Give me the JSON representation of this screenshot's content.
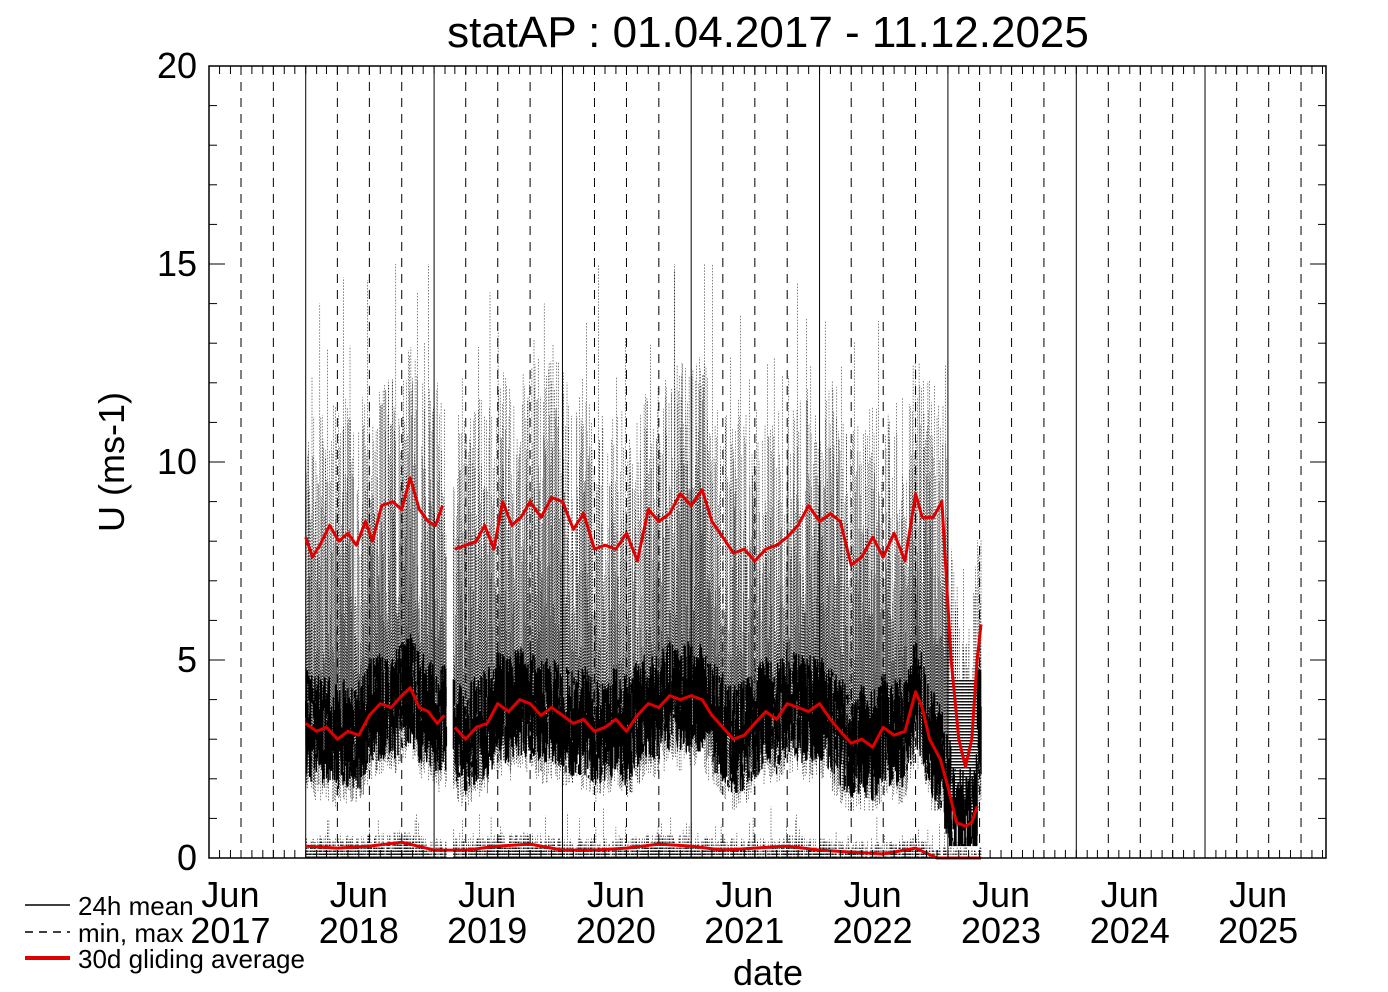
{
  "chart_data": {
    "type": "line",
    "title": "statAP : 01.04.2017 - 11.12.2025",
    "xlabel": "date",
    "ylabel": "U (ms-1)",
    "ylim": [
      0,
      20
    ],
    "yticks": [
      "0",
      "5",
      "10",
      "15",
      "20"
    ],
    "xlim": [
      "2017-04-01",
      "2025-12-11"
    ],
    "xtick_month": "Jun",
    "xtick_years": [
      "2017",
      "2018",
      "2019",
      "2020",
      "2021",
      "2022",
      "2023",
      "2024",
      "2025"
    ],
    "grid": "vertical lines at year starts (solid) and quarters (dashed)",
    "legend_position": "bottom-left",
    "legend": [
      {
        "label": "24h mean",
        "style": "solid",
        "color": "#000000"
      },
      {
        "label": "min, max",
        "style": "dashed",
        "color": "#000000"
      },
      {
        "label": "30d gliding average",
        "style": "solid-thick",
        "color": "#e00000"
      }
    ],
    "series": [
      {
        "name": "30d gliding average (max)",
        "color": "#e00000",
        "points": [
          [
            "2018-01-01",
            8.1
          ],
          [
            "2018-01-20",
            7.6
          ],
          [
            "2018-02-10",
            7.9
          ],
          [
            "2018-03-10",
            8.4
          ],
          [
            "2018-04-05",
            8.0
          ],
          [
            "2018-05-01",
            8.2
          ],
          [
            "2018-05-25",
            7.9
          ],
          [
            "2018-06-20",
            8.5
          ],
          [
            "2018-07-10",
            8.0
          ],
          [
            "2018-08-05",
            8.9
          ],
          [
            "2018-09-05",
            9.0
          ],
          [
            "2018-10-01",
            8.8
          ],
          [
            "2018-10-25",
            9.6
          ],
          [
            "2018-11-20",
            8.8
          ],
          [
            "2018-12-15",
            8.5
          ],
          [
            "2019-01-05",
            8.4
          ],
          [
            "2019-01-25",
            8.9
          ],
          [
            "2019-02-10",
            null
          ],
          [
            "2019-03-01",
            7.8
          ],
          [
            "2019-04-01",
            7.9
          ],
          [
            "2019-05-01",
            8.0
          ],
          [
            "2019-05-25",
            8.4
          ],
          [
            "2019-06-20",
            7.8
          ],
          [
            "2019-07-15",
            9.0
          ],
          [
            "2019-08-10",
            8.4
          ],
          [
            "2019-09-05",
            8.6
          ],
          [
            "2019-10-01",
            9.0
          ],
          [
            "2019-11-01",
            8.6
          ],
          [
            "2019-12-01",
            9.1
          ],
          [
            "2020-01-01",
            9.0
          ],
          [
            "2020-02-01",
            8.3
          ],
          [
            "2020-03-01",
            8.7
          ],
          [
            "2020-04-01",
            7.8
          ],
          [
            "2020-05-01",
            7.9
          ],
          [
            "2020-06-01",
            7.8
          ],
          [
            "2020-07-01",
            8.2
          ],
          [
            "2020-08-01",
            7.5
          ],
          [
            "2020-09-01",
            8.8
          ],
          [
            "2020-10-01",
            8.5
          ],
          [
            "2020-11-01",
            8.7
          ],
          [
            "2020-12-01",
            9.2
          ],
          [
            "2021-01-01",
            8.9
          ],
          [
            "2021-02-01",
            9.3
          ],
          [
            "2021-03-01",
            8.5
          ],
          [
            "2021-04-01",
            8.1
          ],
          [
            "2021-05-01",
            7.7
          ],
          [
            "2021-06-01",
            7.8
          ],
          [
            "2021-07-01",
            7.5
          ],
          [
            "2021-08-01",
            7.8
          ],
          [
            "2021-09-01",
            7.9
          ],
          [
            "2021-10-01",
            8.1
          ],
          [
            "2021-11-01",
            8.4
          ],
          [
            "2021-12-01",
            8.9
          ],
          [
            "2022-01-01",
            8.5
          ],
          [
            "2022-02-01",
            8.7
          ],
          [
            "2022-03-01",
            8.5
          ],
          [
            "2022-04-01",
            7.4
          ],
          [
            "2022-05-01",
            7.6
          ],
          [
            "2022-06-01",
            8.1
          ],
          [
            "2022-07-01",
            7.6
          ],
          [
            "2022-08-01",
            8.2
          ],
          [
            "2022-09-01",
            7.5
          ],
          [
            "2022-10-01",
            9.2
          ],
          [
            "2022-10-20",
            8.6
          ],
          [
            "2022-11-20",
            8.6
          ],
          [
            "2022-12-15",
            9.0
          ],
          [
            "2023-01-10",
            5.0
          ],
          [
            "2023-02-01",
            3.0
          ],
          [
            "2023-02-20",
            2.3
          ],
          [
            "2023-03-10",
            3.0
          ],
          [
            "2023-03-25",
            5.0
          ],
          [
            "2023-04-05",
            5.9
          ]
        ]
      },
      {
        "name": "30d gliding average (mean)",
        "color": "#e00000",
        "points": [
          [
            "2018-01-01",
            3.4
          ],
          [
            "2018-02-01",
            3.2
          ],
          [
            "2018-03-01",
            3.3
          ],
          [
            "2018-04-01",
            3.0
          ],
          [
            "2018-05-01",
            3.2
          ],
          [
            "2018-06-01",
            3.1
          ],
          [
            "2018-07-01",
            3.6
          ],
          [
            "2018-08-01",
            3.9
          ],
          [
            "2018-09-01",
            3.8
          ],
          [
            "2018-10-01",
            4.1
          ],
          [
            "2018-10-25",
            4.3
          ],
          [
            "2018-11-20",
            3.8
          ],
          [
            "2018-12-15",
            3.7
          ],
          [
            "2019-01-10",
            3.4
          ],
          [
            "2019-01-30",
            3.6
          ],
          [
            "2019-02-10",
            null
          ],
          [
            "2019-03-01",
            3.3
          ],
          [
            "2019-04-01",
            3.0
          ],
          [
            "2019-05-01",
            3.3
          ],
          [
            "2019-06-01",
            3.4
          ],
          [
            "2019-07-01",
            3.9
          ],
          [
            "2019-08-01",
            3.7
          ],
          [
            "2019-09-01",
            4.0
          ],
          [
            "2019-10-01",
            3.9
          ],
          [
            "2019-11-01",
            3.6
          ],
          [
            "2019-12-01",
            3.8
          ],
          [
            "2020-01-01",
            3.6
          ],
          [
            "2020-02-01",
            3.4
          ],
          [
            "2020-03-01",
            3.5
          ],
          [
            "2020-04-01",
            3.2
          ],
          [
            "2020-05-01",
            3.3
          ],
          [
            "2020-06-01",
            3.5
          ],
          [
            "2020-07-01",
            3.2
          ],
          [
            "2020-08-01",
            3.6
          ],
          [
            "2020-09-01",
            3.9
          ],
          [
            "2020-10-01",
            3.8
          ],
          [
            "2020-11-01",
            4.1
          ],
          [
            "2020-12-01",
            4.0
          ],
          [
            "2021-01-01",
            4.1
          ],
          [
            "2021-02-01",
            4.0
          ],
          [
            "2021-03-01",
            3.6
          ],
          [
            "2021-04-01",
            3.3
          ],
          [
            "2021-05-01",
            3.0
          ],
          [
            "2021-06-01",
            3.1
          ],
          [
            "2021-07-01",
            3.4
          ],
          [
            "2021-08-01",
            3.7
          ],
          [
            "2021-09-01",
            3.5
          ],
          [
            "2021-10-01",
            3.9
          ],
          [
            "2021-11-01",
            3.8
          ],
          [
            "2021-12-01",
            3.7
          ],
          [
            "2022-01-01",
            3.9
          ],
          [
            "2022-02-01",
            3.5
          ],
          [
            "2022-03-01",
            3.2
          ],
          [
            "2022-04-01",
            2.9
          ],
          [
            "2022-05-01",
            3.0
          ],
          [
            "2022-06-01",
            2.8
          ],
          [
            "2022-07-01",
            3.3
          ],
          [
            "2022-08-01",
            3.1
          ],
          [
            "2022-09-01",
            3.2
          ],
          [
            "2022-10-01",
            4.2
          ],
          [
            "2022-10-20",
            3.8
          ],
          [
            "2022-11-10",
            3.0
          ],
          [
            "2022-12-10",
            2.5
          ],
          [
            "2023-01-01",
            1.8
          ],
          [
            "2023-01-25",
            0.9
          ],
          [
            "2023-02-20",
            0.8
          ],
          [
            "2023-03-10",
            0.9
          ],
          [
            "2023-03-25",
            1.3
          ]
        ]
      },
      {
        "name": "30d gliding average (min)",
        "color": "#e00000",
        "points": [
          [
            "2018-01-01",
            0.3
          ],
          [
            "2018-04-01",
            0.25
          ],
          [
            "2018-07-01",
            0.3
          ],
          [
            "2018-10-01",
            0.4
          ],
          [
            "2019-01-01",
            0.2
          ],
          [
            "2019-04-01",
            0.2
          ],
          [
            "2019-07-01",
            0.3
          ],
          [
            "2019-10-01",
            0.35
          ],
          [
            "2020-01-01",
            0.2
          ],
          [
            "2020-04-01",
            0.2
          ],
          [
            "2020-07-01",
            0.25
          ],
          [
            "2020-10-01",
            0.35
          ],
          [
            "2021-01-01",
            0.3
          ],
          [
            "2021-04-01",
            0.2
          ],
          [
            "2021-07-01",
            0.25
          ],
          [
            "2021-10-01",
            0.3
          ],
          [
            "2022-01-01",
            0.2
          ],
          [
            "2022-04-01",
            0.15
          ],
          [
            "2022-07-01",
            0.1
          ],
          [
            "2022-10-01",
            0.25
          ],
          [
            "2022-12-01",
            0.0
          ],
          [
            "2023-04-05",
            0.0
          ]
        ]
      }
    ],
    "daily_band": {
      "name": "24h mean",
      "color": "#000000",
      "start": "2018-01-01",
      "end": "2023-04-05",
      "gap": [
        "2019-02-05",
        "2019-02-25"
      ],
      "typical_range": [
        1.5,
        5.8
      ]
    },
    "minmax_band": {
      "name": "min, max",
      "color": "#000000",
      "start": "2018-01-01",
      "end": "2023-04-05",
      "max_range": [
        6.0,
        15.0
      ],
      "min_range": [
        0.0,
        1.3
      ]
    }
  }
}
